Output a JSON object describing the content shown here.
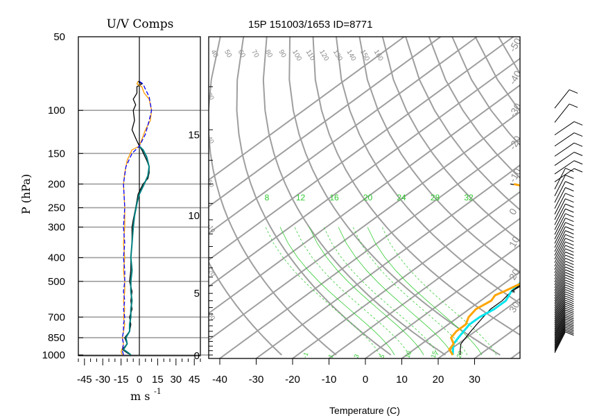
{
  "title": "15P 151003/1653 ID=8771",
  "chart_data": [
    {
      "type": "line",
      "title": "U/V Comps",
      "xlabel": "m s",
      "xlabel_exp": "-1",
      "ylabel": "P (hPa)",
      "xlim": [
        -50,
        50
      ],
      "ylim": [
        1000,
        50
      ],
      "y_scale": "log",
      "x_ticks": [
        "-45",
        "-30",
        "-15",
        "0",
        "15",
        "30",
        "45"
      ],
      "y_ticks": [
        "50",
        "100",
        "150",
        "200",
        "250",
        "300",
        "400",
        "500",
        "700",
        "850",
        "1000"
      ],
      "y_tick_values": [
        50,
        100,
        150,
        200,
        250,
        300,
        400,
        500,
        700,
        850,
        1000
      ],
      "series": [
        {
          "color": "#000000",
          "dash": "solid",
          "points": [
            [
              -7,
              1000
            ],
            [
              -10,
              980
            ],
            [
              -14,
              950
            ],
            [
              -10,
              900
            ],
            [
              -12,
              850
            ],
            [
              -8,
              800
            ],
            [
              -7,
              750
            ],
            [
              -8,
              700
            ],
            [
              -6,
              650
            ],
            [
              -7,
              600
            ],
            [
              -6,
              550
            ],
            [
              -8,
              500
            ],
            [
              -7,
              450
            ],
            [
              -7,
              400
            ],
            [
              -6,
              350
            ],
            [
              -6,
              300
            ],
            [
              -5,
              280
            ],
            [
              -3,
              250
            ],
            [
              -1,
              220
            ],
            [
              3,
              200
            ],
            [
              7,
              190
            ],
            [
              8,
              180
            ],
            [
              8,
              170
            ],
            [
              6,
              160
            ],
            [
              2,
              145
            ],
            [
              0,
              140
            ],
            [
              -3,
              130
            ],
            [
              -6,
              120
            ],
            [
              -4,
              110
            ],
            [
              -5,
              100
            ],
            [
              -3,
              95
            ],
            [
              -5,
              90
            ],
            [
              -2,
              85
            ],
            [
              -2,
              80
            ],
            [
              2,
              78
            ],
            [
              -1,
              76
            ]
          ]
        },
        {
          "color": "#008080",
          "dash": "solid",
          "points": [
            [
              -7,
              1000
            ],
            [
              -9,
              980
            ],
            [
              -13,
              950
            ],
            [
              -10,
              900
            ],
            [
              -11,
              850
            ],
            [
              -8,
              800
            ],
            [
              -8,
              750
            ],
            [
              -7,
              700
            ],
            [
              -7,
              650
            ],
            [
              -6,
              600
            ],
            [
              -7,
              550
            ],
            [
              -7,
              500
            ],
            [
              -6,
              450
            ],
            [
              -7,
              400
            ],
            [
              -6,
              350
            ],
            [
              -5,
              300
            ],
            [
              -4,
              270
            ],
            [
              -2,
              240
            ],
            [
              0,
              220
            ],
            [
              4,
              200
            ],
            [
              7,
              185
            ],
            [
              8,
              170
            ],
            [
              6,
              155
            ],
            [
              3,
              145
            ],
            [
              0,
              140
            ]
          ]
        },
        {
          "color": "#ff9900",
          "dash": "solid",
          "points": [
            [
              -14,
              1000
            ],
            [
              -15,
              970
            ],
            [
              -14,
              940
            ],
            [
              -13,
              900
            ],
            [
              -14,
              850
            ],
            [
              -13,
              800
            ],
            [
              -12,
              750
            ],
            [
              -13,
              700
            ],
            [
              -12,
              650
            ],
            [
              -13,
              600
            ],
            [
              -12,
              550
            ],
            [
              -12,
              500
            ],
            [
              -13,
              450
            ],
            [
              -12,
              400
            ],
            [
              -13,
              350
            ],
            [
              -12,
              300
            ],
            [
              -12,
              250
            ],
            [
              -13,
              200
            ],
            [
              -12,
              180
            ],
            [
              -10,
              160
            ],
            [
              -6,
              145
            ],
            [
              0,
              140
            ],
            [
              5,
              120
            ],
            [
              9,
              110
            ],
            [
              10,
              100
            ],
            [
              8,
              90
            ],
            [
              4,
              85
            ],
            [
              2,
              80
            ],
            [
              -2,
              78
            ],
            [
              -1,
              76
            ]
          ]
        },
        {
          "color": "#0000ff",
          "dash": "dashed",
          "points": [
            [
              -13,
              1000
            ],
            [
              -14,
              960
            ],
            [
              -13,
              900
            ],
            [
              -14,
              850
            ],
            [
              -13,
              800
            ],
            [
              -13,
              750
            ],
            [
              -12,
              700
            ],
            [
              -13,
              650
            ],
            [
              -12,
              600
            ],
            [
              -13,
              550
            ],
            [
              -12,
              500
            ],
            [
              -12,
              450
            ],
            [
              -13,
              400
            ],
            [
              -12,
              350
            ],
            [
              -13,
              300
            ],
            [
              -12,
              250
            ],
            [
              -13,
              200
            ],
            [
              -11,
              170
            ],
            [
              -6,
              150
            ],
            [
              0,
              140
            ],
            [
              5,
              125
            ],
            [
              8,
              110
            ],
            [
              10,
              100
            ],
            [
              8,
              88
            ],
            [
              5,
              82
            ],
            [
              3,
              78
            ],
            [
              0,
              76
            ]
          ]
        }
      ]
    },
    {
      "type": "line",
      "xlabel": "Temperature (C)",
      "x_ticks": [
        "-40",
        "-30",
        "-20",
        "-10",
        "0",
        "10",
        "20",
        "30"
      ],
      "x_tick_values": [
        -40,
        -30,
        -20,
        -10,
        0,
        10,
        20,
        30
      ],
      "xlim": [
        -42,
        40
      ],
      "ylim": [
        1000,
        50
      ],
      "y_scale": "log",
      "height_km_labels": [
        "0",
        "5",
        "10",
        "15"
      ],
      "height_km_pressures": [
        1000,
        555,
        268,
        125
      ],
      "mixing_ratio_labels": [
        "8",
        "12",
        "16",
        "20",
        "24",
        "28",
        "32"
      ],
      "theta_labels": [
        "40",
        "50",
        "60",
        "70",
        "80",
        "90",
        "100",
        "110",
        "120",
        "130",
        "140",
        "150",
        "160"
      ],
      "skew_labels": [
        "-50",
        "-40",
        "-30",
        "-20",
        "-10",
        "0",
        "10",
        "20",
        "30"
      ],
      "dry_adiabat_labels": [
        "30",
        "40",
        "50",
        "-10",
        "-20",
        "-30"
      ],
      "bottom_labels": [
        "-1",
        "1",
        "3",
        "5",
        "10",
        "15",
        "20"
      ],
      "series": [
        {
          "color": "#000000",
          "points": [
            [
              26,
              1000
            ],
            [
              24,
              950
            ],
            [
              22,
              900
            ],
            [
              21,
              850
            ],
            [
              20,
              800
            ],
            [
              19,
              750
            ],
            [
              18,
              700
            ],
            [
              17,
              650
            ],
            [
              17,
              600
            ],
            [
              16,
              550
            ],
            [
              17,
              500
            ],
            [
              16,
              450
            ],
            [
              14,
              400
            ],
            [
              12,
              350
            ],
            [
              10,
              300
            ],
            [
              7,
              250
            ],
            [
              4,
              200
            ],
            [
              1,
              170
            ],
            [
              0,
              150
            ],
            [
              0,
              130
            ],
            [
              1,
              110
            ],
            [
              4,
              100
            ],
            [
              6,
              95
            ],
            [
              8,
              90
            ],
            [
              10,
              85
            ],
            [
              11,
              80
            ]
          ]
        },
        {
          "color": "#00e5ee",
          "points": [
            [
              24,
              1000
            ],
            [
              22,
              950
            ],
            [
              20,
              900
            ],
            [
              19,
              850
            ],
            [
              18,
              800
            ],
            [
              17,
              750
            ],
            [
              17,
              700
            ],
            [
              18,
              650
            ],
            [
              18,
              600
            ],
            [
              16,
              550
            ],
            [
              15,
              500
            ],
            [
              14,
              450
            ],
            [
              12,
              400
            ],
            [
              9,
              350
            ],
            [
              6,
              300
            ],
            [
              2,
              250
            ],
            [
              0,
              200
            ],
            [
              3,
              180
            ],
            [
              9,
              150
            ],
            [
              16,
              120
            ],
            [
              21,
              100
            ],
            [
              30,
              80
            ]
          ]
        },
        {
          "color": "#000000",
          "points": [
            [
              16,
              550
            ],
            [
              16,
              500
            ],
            [
              14,
              450
            ],
            [
              11,
              400
            ],
            [
              7,
              350
            ],
            [
              2,
              300
            ],
            [
              -5,
              260
            ],
            [
              -12,
              230
            ],
            [
              -20,
              205
            ],
            [
              -25,
              200
            ]
          ]
        },
        {
          "color": "#ffa500",
          "points": [
            [
              24,
              1000
            ],
            [
              21,
              950
            ],
            [
              20,
              900
            ],
            [
              17,
              850
            ],
            [
              16,
              800
            ],
            [
              16,
              750
            ],
            [
              14,
              700
            ],
            [
              13,
              650
            ],
            [
              14,
              600
            ],
            [
              13,
              570
            ],
            [
              14,
              550
            ],
            [
              16,
              500
            ],
            [
              14,
              450
            ],
            [
              11,
              400
            ],
            [
              7,
              350
            ],
            [
              2,
              300
            ],
            [
              -5,
              260
            ],
            [
              -12,
              230
            ],
            [
              -20,
              205
            ],
            [
              -24,
              200
            ]
          ]
        }
      ]
    }
  ]
}
